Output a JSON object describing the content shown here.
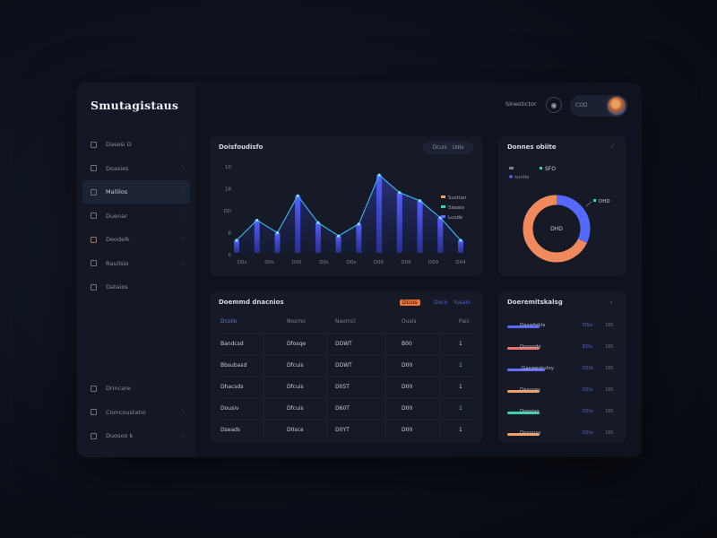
{
  "app": {
    "brand": "Smutagistaus"
  },
  "topbar": {
    "label": "Sinestictor",
    "pill_text": "COD"
  },
  "sidebar": {
    "items": [
      {
        "label": "Dasesi D",
        "active": false
      },
      {
        "label": "Doasies",
        "active": false
      },
      {
        "label": "Mallilos",
        "active": true
      },
      {
        "label": "Duenar",
        "active": false
      },
      {
        "label": "Deodelk",
        "active": false
      },
      {
        "label": "Rauilsio",
        "active": false
      },
      {
        "label": "Dataios",
        "active": false
      }
    ],
    "bottom_items": [
      {
        "label": "Drincare"
      },
      {
        "label": "Comcoustatio"
      },
      {
        "label": "Duosoo k"
      }
    ]
  },
  "chart_card": {
    "title": "Doisfoudisfo",
    "range_label": "Dcuis",
    "range_alt": "Udis"
  },
  "chart_data": {
    "type": "area",
    "y_ticks": [
      "10",
      "18",
      "DD",
      "8",
      "0"
    ],
    "x_labels": [
      "D0s",
      "D0s",
      "D0S",
      "D0s",
      "D0s",
      "D05",
      "D09",
      "D09",
      "D04"
    ],
    "values": [
      2,
      5.2,
      3.2,
      9.1,
      4.8,
      2.7,
      4.6,
      12.4,
      9.6,
      8.3,
      5.6,
      2.0
    ],
    "legend": [
      {
        "name": "Sustian",
        "color": "#f0a060"
      },
      {
        "name": "Sasaio",
        "color": "#3fd1a6"
      },
      {
        "name": "Lusdo",
        "color": "#5d6cff"
      }
    ],
    "colors": {
      "bar_top": "#5361ff",
      "bar_bottom": "#2f33a8",
      "line": "#39b0e6",
      "point": "#7fe3ff"
    }
  },
  "donut_card": {
    "title": "Donnes obiite",
    "legend_a": "SFO",
    "legend_b": "sustio",
    "side_label": "DHD",
    "center_label": "DHD",
    "segments": [
      {
        "value": 32,
        "color": "#5568ff"
      },
      {
        "value": 68,
        "color": "#f08a5d"
      }
    ]
  },
  "table_card": {
    "title": "Doemmd dnacnios",
    "tag_orange": "Dcuis",
    "tag_blue": "Doco",
    "tag_blue2": "Yusaio",
    "headers": [
      "Dcoilo",
      "Nosmo",
      "Naomcl",
      "Ousis",
      "Paic"
    ],
    "rows": [
      [
        "Bandcsd",
        "Dfosqe",
        "DDWT",
        "B00",
        "1"
      ],
      [
        "Bbsubasd",
        "Dfcuis",
        "DDWT",
        "D00",
        "1"
      ],
      [
        "Dhacsds",
        "Dfcuis",
        "D05T",
        "D00",
        "1"
      ],
      [
        "Dousiv",
        "Dfcuis",
        "D60T",
        "D00",
        "1"
      ],
      [
        "Dseads",
        "D0sca",
        "D0YT",
        "D00",
        "1"
      ]
    ]
  },
  "list_card": {
    "title": "Doeremitskalsg",
    "items": [
      {
        "label": "Daswfekts",
        "val": "DSo",
        "val2": "DD",
        "color": "#5568ff"
      },
      {
        "label": "Dnxssdo",
        "val": "EDo",
        "val2": "DD",
        "color": "#f07070"
      },
      {
        "label": "Gasweskutsy",
        "val": "DDb",
        "val2": "DD",
        "color": "#6570ff"
      },
      {
        "label": "Dasoses",
        "val": "DDs",
        "val2": "DD",
        "color": "#f0a060"
      },
      {
        "label": "Doesiso",
        "val": "DDo",
        "val2": "DD",
        "color": "#3fd1a6"
      },
      {
        "label": "Dnsouso",
        "val": "DDo",
        "val2": "DD",
        "color": "#f0a060"
      }
    ]
  }
}
